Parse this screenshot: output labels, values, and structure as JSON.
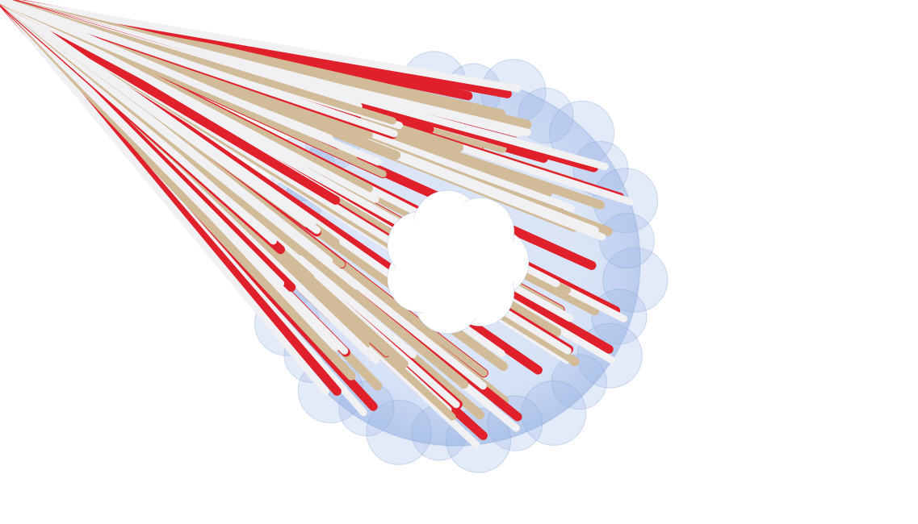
{
  "scene": {
    "subject": "cyclodextrin-ring-molecule",
    "representation": [
      "stick-model",
      "transparent-molecular-surface"
    ],
    "background_color": "#ffffff",
    "colors": {
      "surface": "#9db8e6",
      "surface_edge": "#7f9fd8",
      "carbon": "#d2bb98",
      "oxygen": "#e0202a",
      "hydrogen": "#f1f1f4"
    },
    "glucose_units": 7
  }
}
